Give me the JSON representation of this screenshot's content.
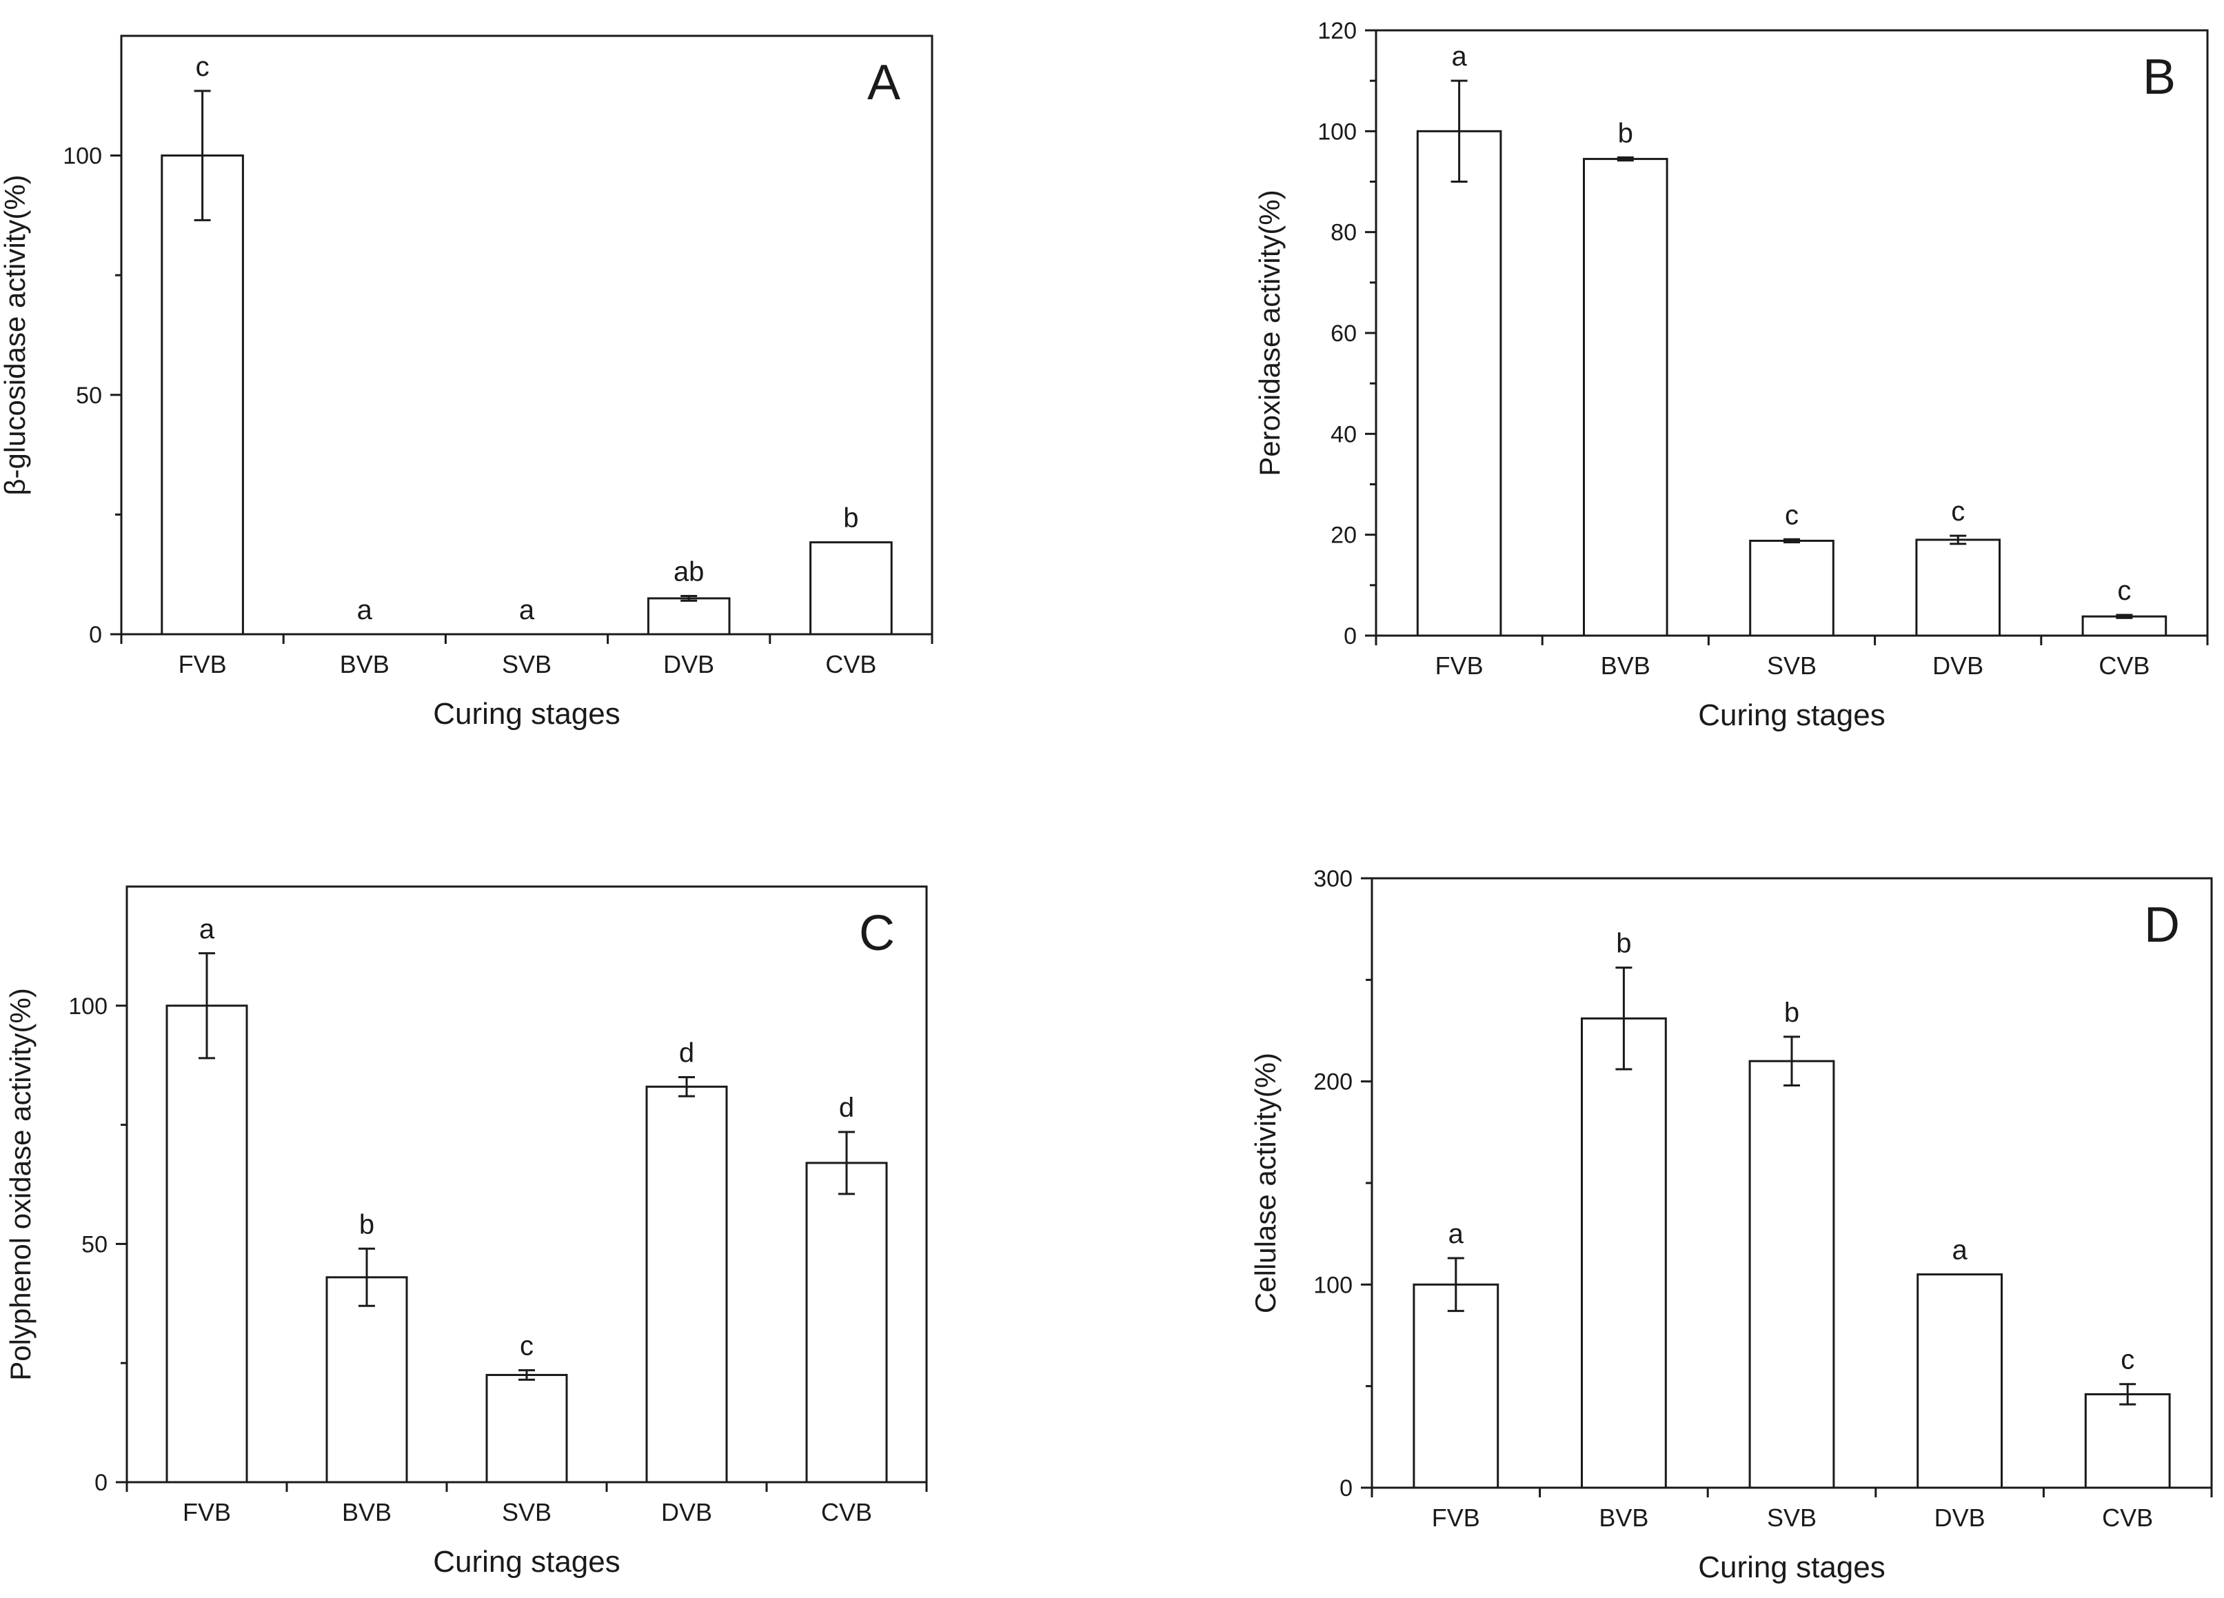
{
  "chart_data": [
    {
      "type": "bar",
      "panel_label": "A",
      "title": "",
      "xlabel": "Curing stages",
      "ylabel": "β-glucosidase activity(%)",
      "categories": [
        "FVB",
        "BVB",
        "SVB",
        "DVB",
        "CVB"
      ],
      "values": [
        100,
        0,
        0,
        7.5,
        19.2
      ],
      "errors": [
        13.5,
        0,
        0,
        0.5,
        0
      ],
      "significance_letters": [
        "c",
        "a",
        "a",
        "ab",
        "b"
      ],
      "ylim": [
        0,
        125
      ],
      "yticks": [
        0,
        50,
        100
      ],
      "minor_yticks": [
        25,
        75
      ],
      "grid": false,
      "legend": "none"
    },
    {
      "type": "bar",
      "panel_label": "B",
      "title": "",
      "xlabel": "Curing stages",
      "ylabel": "Peroxidase activity(%)",
      "categories": [
        "FVB",
        "BVB",
        "SVB",
        "DVB",
        "CVB"
      ],
      "values": [
        100,
        94.5,
        18.8,
        19.0,
        3.8
      ],
      "errors": [
        10,
        0.3,
        0.3,
        0.8,
        0.3
      ],
      "significance_letters": [
        "a",
        "b",
        "c",
        "c",
        "c"
      ],
      "ylim": [
        0,
        120
      ],
      "yticks": [
        0,
        20,
        40,
        60,
        80,
        100,
        120
      ],
      "minor_yticks": [
        10,
        30,
        50,
        70,
        90,
        110
      ],
      "grid": false,
      "legend": "none"
    },
    {
      "type": "bar",
      "panel_label": "C",
      "title": "",
      "xlabel": "Curing stages",
      "ylabel": "Polyphenol oxidase activity(%)",
      "categories": [
        "FVB",
        "BVB",
        "SVB",
        "DVB",
        "CVB"
      ],
      "values": [
        100,
        43,
        22.5,
        83,
        67
      ],
      "errors": [
        11,
        6,
        1,
        2,
        6.5
      ],
      "significance_letters": [
        "a",
        "b",
        "c",
        "d",
        "d"
      ],
      "ylim": [
        0,
        125
      ],
      "yticks": [
        0,
        50,
        100
      ],
      "minor_yticks": [
        25,
        75
      ],
      "grid": false,
      "legend": "none"
    },
    {
      "type": "bar",
      "panel_label": "D",
      "title": "",
      "xlabel": "Curing stages",
      "ylabel": "Cellulase activity(%)",
      "categories": [
        "FVB",
        "BVB",
        "SVB",
        "DVB",
        "CVB"
      ],
      "values": [
        100,
        231,
        210,
        105,
        46
      ],
      "errors": [
        13,
        25,
        12,
        0,
        5
      ],
      "significance_letters": [
        "a",
        "b",
        "b",
        "a",
        "c"
      ],
      "ylim": [
        0,
        300
      ],
      "yticks": [
        0,
        100,
        200,
        300
      ],
      "minor_yticks": [
        50,
        150,
        250
      ],
      "grid": false,
      "legend": "none"
    }
  ],
  "style": {
    "bar_fill": "#ffffff",
    "stroke": "#1a1a1a",
    "background": "#ffffff"
  }
}
